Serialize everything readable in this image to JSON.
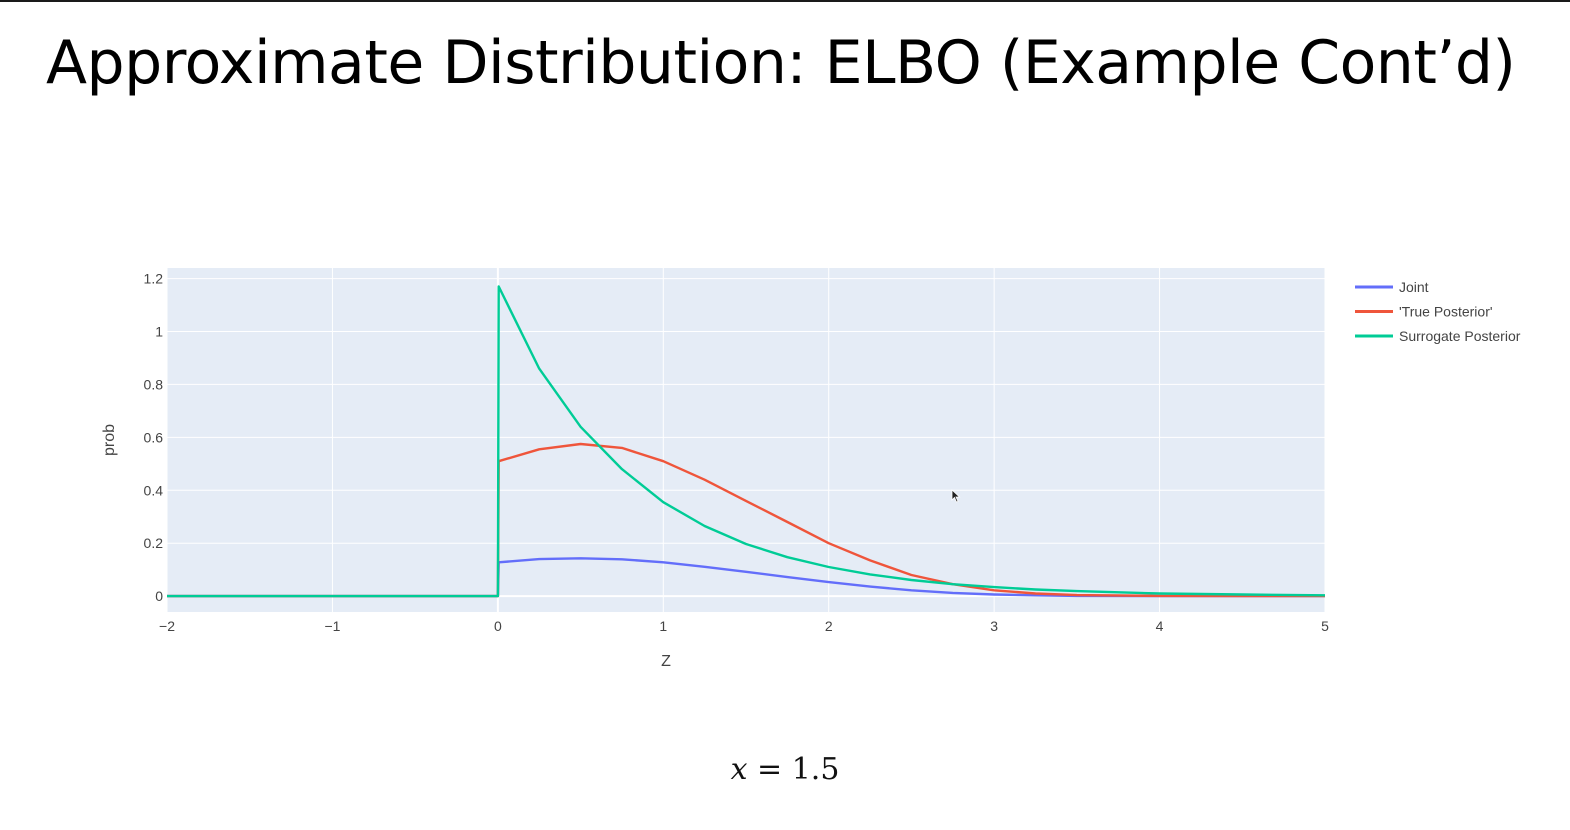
{
  "slide": {
    "title": "Approximate Distribution: ELBO (Example Cont’d)",
    "equation_var": "x",
    "equation_rest": " = 1.5"
  },
  "chart_data": {
    "type": "line",
    "xlabel": "Z",
    "ylabel": "prob",
    "xlim": [
      -2,
      5
    ],
    "ylim": [
      -0.06,
      1.24
    ],
    "x_ticks": [
      -2,
      -1,
      0,
      1,
      2,
      3,
      4,
      5
    ],
    "x_tick_labels": [
      "−2",
      "−1",
      "0",
      "1",
      "2",
      "3",
      "4",
      "5"
    ],
    "y_ticks": [
      0,
      0.2,
      0.4,
      0.6,
      0.8,
      1,
      1.2
    ],
    "y_tick_labels": [
      "0",
      "0.2",
      "0.4",
      "0.6",
      "0.8",
      "1",
      "1.2"
    ],
    "grid": true,
    "legend_position": "right",
    "series": [
      {
        "name": "Joint",
        "color": "#636efa",
        "x": [
          -2,
          0,
          0.005,
          0.25,
          0.5,
          0.75,
          1,
          1.25,
          1.5,
          1.75,
          2,
          2.25,
          2.5,
          2.75,
          3,
          3.25,
          3.5,
          4,
          4.5,
          5
        ],
        "y": [
          0,
          0,
          0.128,
          0.14,
          0.143,
          0.139,
          0.128,
          0.111,
          0.092,
          0.072,
          0.053,
          0.036,
          0.022,
          0.012,
          0.006,
          0.003,
          0.001,
          0.0002,
          0,
          0
        ]
      },
      {
        "name": "'True Posterior'",
        "color": "#ef553b",
        "x": [
          -2,
          0,
          0.005,
          0.25,
          0.5,
          0.75,
          1,
          1.25,
          1.5,
          1.75,
          2,
          2.25,
          2.5,
          2.75,
          3,
          3.25,
          3.5,
          4,
          4.5,
          5
        ],
        "y": [
          0,
          0,
          0.51,
          0.555,
          0.575,
          0.56,
          0.51,
          0.44,
          0.36,
          0.28,
          0.2,
          0.135,
          0.08,
          0.045,
          0.022,
          0.01,
          0.004,
          0.001,
          0,
          0
        ]
      },
      {
        "name": "Surrogate Posterior",
        "color": "#00cc96",
        "x": [
          -2,
          0,
          0.005,
          0.25,
          0.5,
          0.75,
          1,
          1.25,
          1.5,
          1.75,
          2,
          2.25,
          2.5,
          2.75,
          3,
          3.25,
          3.5,
          4,
          4.5,
          5
        ],
        "y": [
          0,
          0,
          1.17,
          0.86,
          0.64,
          0.48,
          0.355,
          0.265,
          0.197,
          0.147,
          0.11,
          0.082,
          0.061,
          0.045,
          0.034,
          0.025,
          0.019,
          0.01,
          0.006,
          0.003
        ]
      }
    ]
  }
}
